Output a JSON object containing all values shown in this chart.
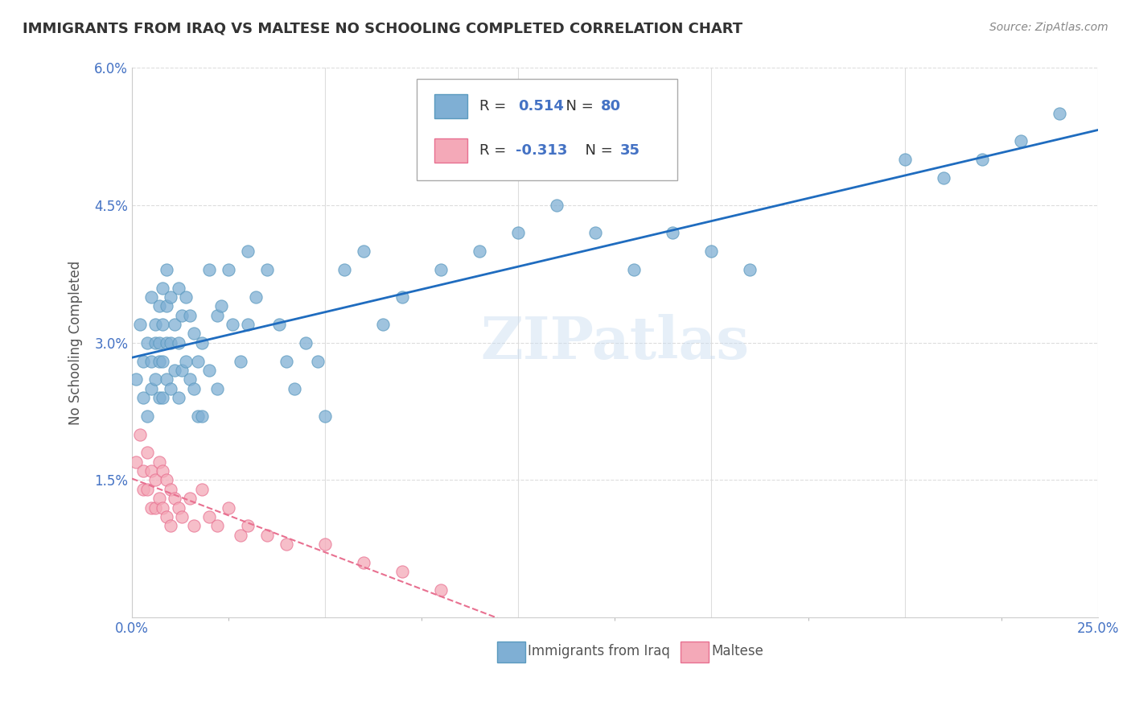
{
  "title": "IMMIGRANTS FROM IRAQ VS MALTESE NO SCHOOLING COMPLETED CORRELATION CHART",
  "source": "Source: ZipAtlas.com",
  "xlabel": "",
  "ylabel": "No Schooling Completed",
  "xlim": [
    0.0,
    0.25
  ],
  "ylim": [
    0.0,
    0.06
  ],
  "xticks": [
    0.0,
    0.05,
    0.1,
    0.15,
    0.2,
    0.25
  ],
  "xticklabels": [
    "0.0%",
    "",
    "",
    "",
    "",
    "25.0%"
  ],
  "yticks": [
    0.0,
    0.015,
    0.03,
    0.045,
    0.06
  ],
  "yticklabels": [
    "",
    "1.5%",
    "3.0%",
    "4.5%",
    "6.0%"
  ],
  "series1_name": "Immigrants from Iraq",
  "series1_color": "#7fafd4",
  "series1_edge_color": "#5b9abf",
  "series1_R": 0.514,
  "series1_N": 80,
  "series1_x": [
    0.001,
    0.002,
    0.003,
    0.003,
    0.004,
    0.004,
    0.005,
    0.005,
    0.005,
    0.006,
    0.006,
    0.006,
    0.007,
    0.007,
    0.007,
    0.007,
    0.008,
    0.008,
    0.008,
    0.008,
    0.009,
    0.009,
    0.009,
    0.009,
    0.01,
    0.01,
    0.01,
    0.011,
    0.011,
    0.012,
    0.012,
    0.012,
    0.013,
    0.013,
    0.014,
    0.014,
    0.015,
    0.015,
    0.016,
    0.016,
    0.017,
    0.017,
    0.018,
    0.018,
    0.02,
    0.02,
    0.022,
    0.022,
    0.023,
    0.025,
    0.026,
    0.028,
    0.03,
    0.03,
    0.032,
    0.035,
    0.038,
    0.04,
    0.042,
    0.045,
    0.048,
    0.05,
    0.055,
    0.06,
    0.065,
    0.07,
    0.08,
    0.09,
    0.1,
    0.11,
    0.12,
    0.13,
    0.14,
    0.15,
    0.16,
    0.2,
    0.21,
    0.22,
    0.23,
    0.24
  ],
  "series1_y": [
    0.026,
    0.032,
    0.028,
    0.024,
    0.03,
    0.022,
    0.035,
    0.028,
    0.025,
    0.032,
    0.03,
    0.026,
    0.034,
    0.03,
    0.028,
    0.024,
    0.036,
    0.032,
    0.028,
    0.024,
    0.038,
    0.034,
    0.03,
    0.026,
    0.035,
    0.03,
    0.025,
    0.032,
    0.027,
    0.036,
    0.03,
    0.024,
    0.033,
    0.027,
    0.035,
    0.028,
    0.033,
    0.026,
    0.031,
    0.025,
    0.028,
    0.022,
    0.03,
    0.022,
    0.038,
    0.027,
    0.033,
    0.025,
    0.034,
    0.038,
    0.032,
    0.028,
    0.04,
    0.032,
    0.035,
    0.038,
    0.032,
    0.028,
    0.025,
    0.03,
    0.028,
    0.022,
    0.038,
    0.04,
    0.032,
    0.035,
    0.038,
    0.04,
    0.042,
    0.045,
    0.042,
    0.038,
    0.042,
    0.04,
    0.038,
    0.05,
    0.048,
    0.05,
    0.052,
    0.055
  ],
  "series2_name": "Maltese",
  "series2_color": "#f4a9b8",
  "series2_edge_color": "#e87090",
  "series2_R": -0.313,
  "series2_N": 35,
  "series2_x": [
    0.001,
    0.002,
    0.003,
    0.003,
    0.004,
    0.004,
    0.005,
    0.005,
    0.006,
    0.006,
    0.007,
    0.007,
    0.008,
    0.008,
    0.009,
    0.009,
    0.01,
    0.01,
    0.011,
    0.012,
    0.013,
    0.015,
    0.016,
    0.018,
    0.02,
    0.022,
    0.025,
    0.028,
    0.03,
    0.035,
    0.04,
    0.05,
    0.06,
    0.07,
    0.08
  ],
  "series2_y": [
    0.017,
    0.02,
    0.016,
    0.014,
    0.018,
    0.014,
    0.016,
    0.012,
    0.015,
    0.012,
    0.017,
    0.013,
    0.016,
    0.012,
    0.015,
    0.011,
    0.014,
    0.01,
    0.013,
    0.012,
    0.011,
    0.013,
    0.01,
    0.014,
    0.011,
    0.01,
    0.012,
    0.009,
    0.01,
    0.009,
    0.008,
    0.008,
    0.006,
    0.005,
    0.003
  ],
  "line1_color": "#1f6cbf",
  "line2_color": "#e87090",
  "legend_R1": "R =",
  "legend_R1_val": "0.514",
  "legend_N1": "N =",
  "legend_N1_val": "80",
  "legend_R2": "R =",
  "legend_R2_val": "-0.313",
  "legend_N2": "N =",
  "legend_N2_val": "35",
  "watermark": "ZIPatlas",
  "background_color": "#ffffff",
  "grid_color": "#dddddd",
  "title_color": "#333333",
  "axis_color": "#4472c4",
  "ylabel_color": "#555555"
}
